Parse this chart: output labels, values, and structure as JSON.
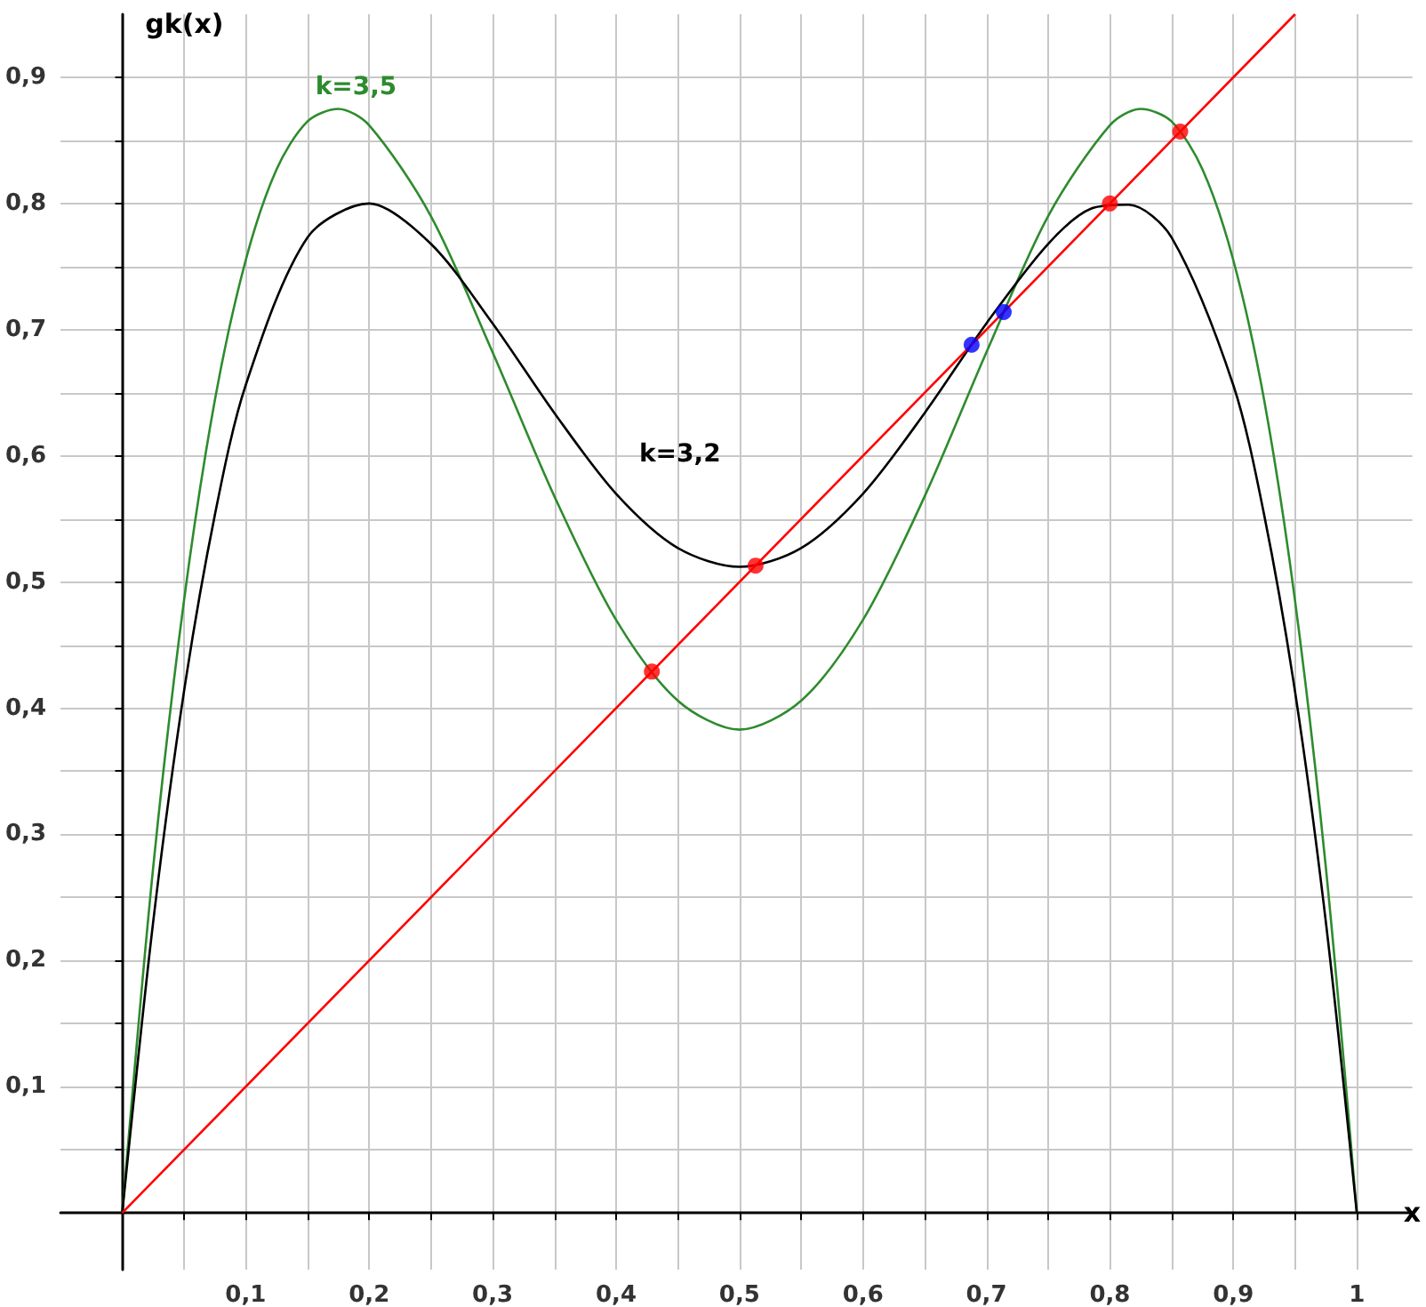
{
  "chart_data": {
    "type": "line",
    "xlabel": "x",
    "ylabel": "gk(x)",
    "xlim": [
      -0.05,
      1.045
    ],
    "ylim": [
      -0.045,
      0.95
    ],
    "xticks": [
      {
        "value": 0.05,
        "label": null
      },
      {
        "value": 0.1,
        "label": "0,1"
      },
      {
        "value": 0.15,
        "label": null
      },
      {
        "value": 0.2,
        "label": "0,2"
      },
      {
        "value": 0.25,
        "label": null
      },
      {
        "value": 0.3,
        "label": "0,3"
      },
      {
        "value": 0.35,
        "label": null
      },
      {
        "value": 0.4,
        "label": "0,4"
      },
      {
        "value": 0.45,
        "label": null
      },
      {
        "value": 0.5,
        "label": "0,5"
      },
      {
        "value": 0.55,
        "label": null
      },
      {
        "value": 0.6,
        "label": "0,6"
      },
      {
        "value": 0.65,
        "label": null
      },
      {
        "value": 0.7,
        "label": "0,7"
      },
      {
        "value": 0.75,
        "label": null
      },
      {
        "value": 0.8,
        "label": "0,8"
      },
      {
        "value": 0.85,
        "label": null
      },
      {
        "value": 0.9,
        "label": "0,9"
      },
      {
        "value": 0.95,
        "label": null
      },
      1
    ],
    "yticks": [
      {
        "value": 0.05,
        "label": null
      },
      {
        "value": 0.1,
        "label": "0,1"
      },
      {
        "value": 0.15,
        "label": null
      },
      {
        "value": 0.2,
        "label": "0,2"
      },
      {
        "value": 0.25,
        "label": null
      },
      {
        "value": 0.3,
        "label": "0,3"
      },
      {
        "value": 0.35,
        "label": null
      },
      {
        "value": 0.4,
        "label": "0,4"
      },
      {
        "value": 0.45,
        "label": null
      },
      {
        "value": 0.5,
        "label": "0,5"
      },
      {
        "value": 0.55,
        "label": null
      },
      {
        "value": 0.6,
        "label": "0,6"
      },
      {
        "value": 0.65,
        "label": null
      },
      {
        "value": 0.7,
        "label": "0,7"
      },
      {
        "value": 0.75,
        "label": null
      },
      {
        "value": 0.8,
        "label": "0,8"
      },
      {
        "value": 0.85,
        "label": null
      },
      {
        "value": 0.9,
        "label": "0,9"
      }
    ],
    "grid": true,
    "legend": false,
    "line_style": "solid",
    "series": [
      {
        "name": "k=3,5",
        "color": "#2e8b2e",
        "x": [
          0,
          0.025,
          0.05,
          0.075,
          0.1,
          0.125,
          0.15,
          0.175,
          0.2,
          0.25,
          0.3,
          0.35,
          0.4,
          0.45,
          0.5,
          0.55,
          0.6,
          0.65,
          0.7,
          0.75,
          0.8,
          0.825,
          0.85,
          0.875,
          0.9,
          0.925,
          0.95,
          0.975,
          1
        ],
        "values": [
          0,
          0.273,
          0.485,
          0.644,
          0.755,
          0.827,
          0.865,
          0.875,
          0.862,
          0.79,
          0.682,
          0.568,
          0.47,
          0.406,
          0.383,
          0.406,
          0.47,
          0.568,
          0.682,
          0.79,
          0.862,
          0.875,
          0.865,
          0.827,
          0.755,
          0.644,
          0.485,
          0.273,
          0
        ]
      },
      {
        "name": "k=3,2",
        "color": "#000000",
        "x": [
          0,
          0.025,
          0.05,
          0.075,
          0.1,
          0.15,
          0.2,
          0.25,
          0.3,
          0.35,
          0.4,
          0.45,
          0.5,
          0.55,
          0.6,
          0.65,
          0.7,
          0.75,
          0.785,
          0.815,
          0.85,
          0.9,
          0.925,
          0.95,
          0.975,
          1
        ],
        "values": [
          0,
          0.23,
          0.413,
          0.553,
          0.656,
          0.773,
          0.8,
          0.768,
          0.705,
          0.634,
          0.57,
          0.527,
          0.512,
          0.527,
          0.57,
          0.634,
          0.705,
          0.768,
          0.796,
          0.799,
          0.773,
          0.656,
          0.553,
          0.413,
          0.23,
          0
        ]
      },
      {
        "color": "#ff0000",
        "x": [
          0,
          0.95
        ],
        "values": [
          0,
          0.95
        ]
      },
      {
        "type": "scatter",
        "marker": "circle",
        "x": [
          0.429,
          0.513,
          0.688,
          0.714,
          0.8,
          0.857
        ],
        "values": [
          0.429,
          0.513,
          0.688,
          0.714,
          0.8,
          0.857
        ],
        "colors": [
          "#ff0000",
          "#ff0000",
          "#0000ff",
          "#0000ff",
          "#ff0000",
          "#ff0000"
        ]
      }
    ]
  }
}
